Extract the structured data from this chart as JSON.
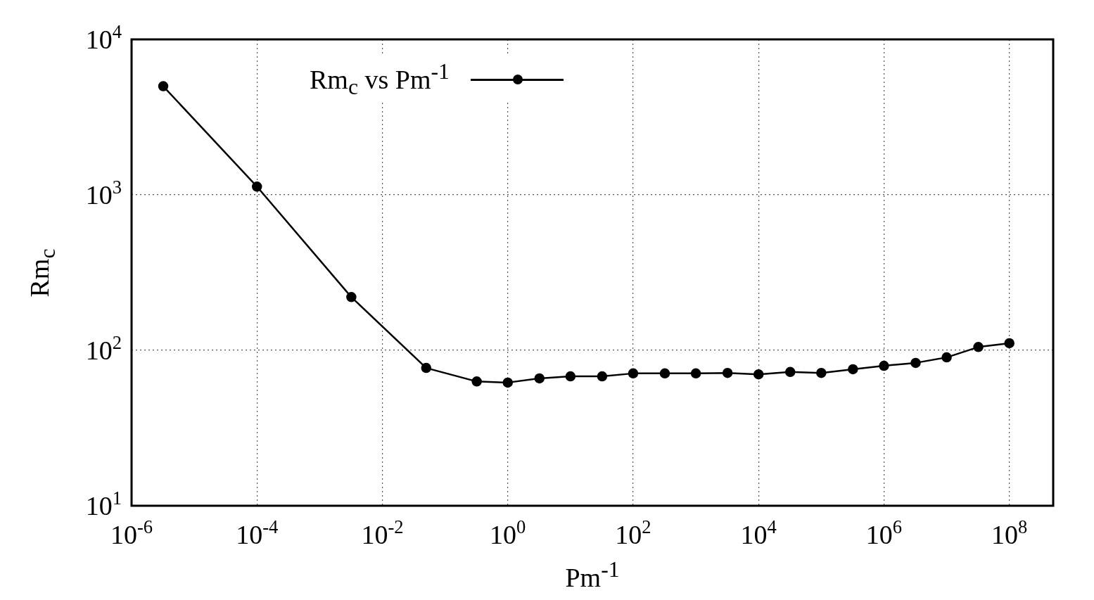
{
  "chart_data": {
    "type": "line",
    "xlabel": "Pm$^{-1}$",
    "ylabel": "Rm$_{c}$",
    "log": "xy",
    "grid": true,
    "legend": "top",
    "marker": "circle",
    "line_style": "solid",
    "xlim": [
      1e-06,
      500000000.0
    ],
    "ylim": [
      10,
      10000
    ],
    "xticks": [
      {
        "value": 1e-06,
        "label": "10$^{-6}$"
      },
      {
        "value": 0.0001,
        "label": "10$^{-4}$"
      },
      {
        "value": 0.01,
        "label": "10$^{-2}$"
      },
      {
        "value": 1,
        "label": "10$^{0}$"
      },
      {
        "value": 100,
        "label": "10$^{2}$"
      },
      {
        "value": 10000.0,
        "label": "10$^{4}$"
      },
      {
        "value": 1000000.0,
        "label": "10$^{6}$"
      },
      {
        "value": 100000000.0,
        "label": "10$^{8}$"
      }
    ],
    "yticks": [
      {
        "value": 10,
        "label": "10$^{1}$"
      },
      {
        "value": 100,
        "label": "10$^{2}$"
      },
      {
        "value": 1000,
        "label": "10$^{3}$"
      },
      {
        "value": 10000,
        "label": "10$^{4}$"
      }
    ],
    "x": [
      3.2e-06,
      0.0001,
      0.0032,
      0.05,
      0.32,
      1,
      3.2,
      10,
      32,
      100,
      320,
      1000,
      3200,
      10000.0,
      32000.0,
      100000.0,
      320000.0,
      1000000.0,
      3200000.0,
      10000000.0,
      32000000.0,
      100000000.0
    ],
    "series": [
      {
        "name": "Rm$_{c}$ vs Pm$^{-1}$",
        "color": "#000000",
        "values": [
          5000,
          1130,
          220,
          77,
          63,
          62,
          66,
          68,
          68,
          71,
          71,
          71,
          71.5,
          70,
          72.5,
          71.5,
          75.5,
          79.5,
          83,
          90,
          105,
          111
        ]
      }
    ]
  }
}
